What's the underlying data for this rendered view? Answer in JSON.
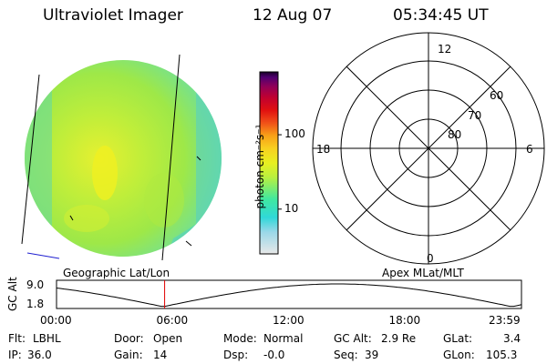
{
  "header": {
    "instrument": "Ultraviolet Imager",
    "date": "12 Aug 07",
    "time": "05:34:45 UT"
  },
  "colorbar": {
    "unit": "photon cm⁻²s⁻¹",
    "ticks": [
      {
        "value": 10,
        "label": "10"
      },
      {
        "value": 100,
        "label": "100"
      }
    ],
    "log_range": [
      2.5,
      700
    ],
    "colors": [
      "#e8e8e8",
      "#9ad8e8",
      "#30d8d8",
      "#40e8a0",
      "#b8f040",
      "#e8f020",
      "#f8d020",
      "#f8a018",
      "#f05018",
      "#e01010",
      "#c00030",
      "#900058",
      "#500070",
      "#180028"
    ]
  },
  "polar_plot": {
    "mlt_labels": {
      "top": "12",
      "left": "18",
      "right": "6",
      "bottom": "0"
    },
    "lat_labels": [
      "60",
      "70",
      "80"
    ]
  },
  "left_caption": "Geographic Lat/Lon",
  "right_caption": "Apex MLat/MLT",
  "timeline": {
    "ylabel": "GC Alt",
    "y_ticks": [
      "9.0",
      "1.8"
    ],
    "x_ticks": [
      "00:00",
      "06:00",
      "12:00",
      "18:00",
      "23:59"
    ],
    "current_time_hours": 5.58,
    "marker_color": "#e00000"
  },
  "info": {
    "flt_label": "Flt:",
    "flt_value": "LBHL",
    "ip_label": "IP:",
    "ip_value": "36.0",
    "door_label": "Door:",
    "door_value": "Open",
    "gain_label": "Gain:",
    "gain_value": "14",
    "mode_label": "Mode:",
    "mode_value": "Normal",
    "dsp_label": "Dsp:",
    "dsp_value": "-0.0",
    "gcalt_label": "GC Alt:",
    "gcalt_value": "2.9 Re",
    "seq_label": "Seq:",
    "seq_value": "39",
    "glat_label": "GLat:",
    "glat_value": "3.4",
    "glon_label": "GLon:",
    "glon_value": "105.3"
  }
}
